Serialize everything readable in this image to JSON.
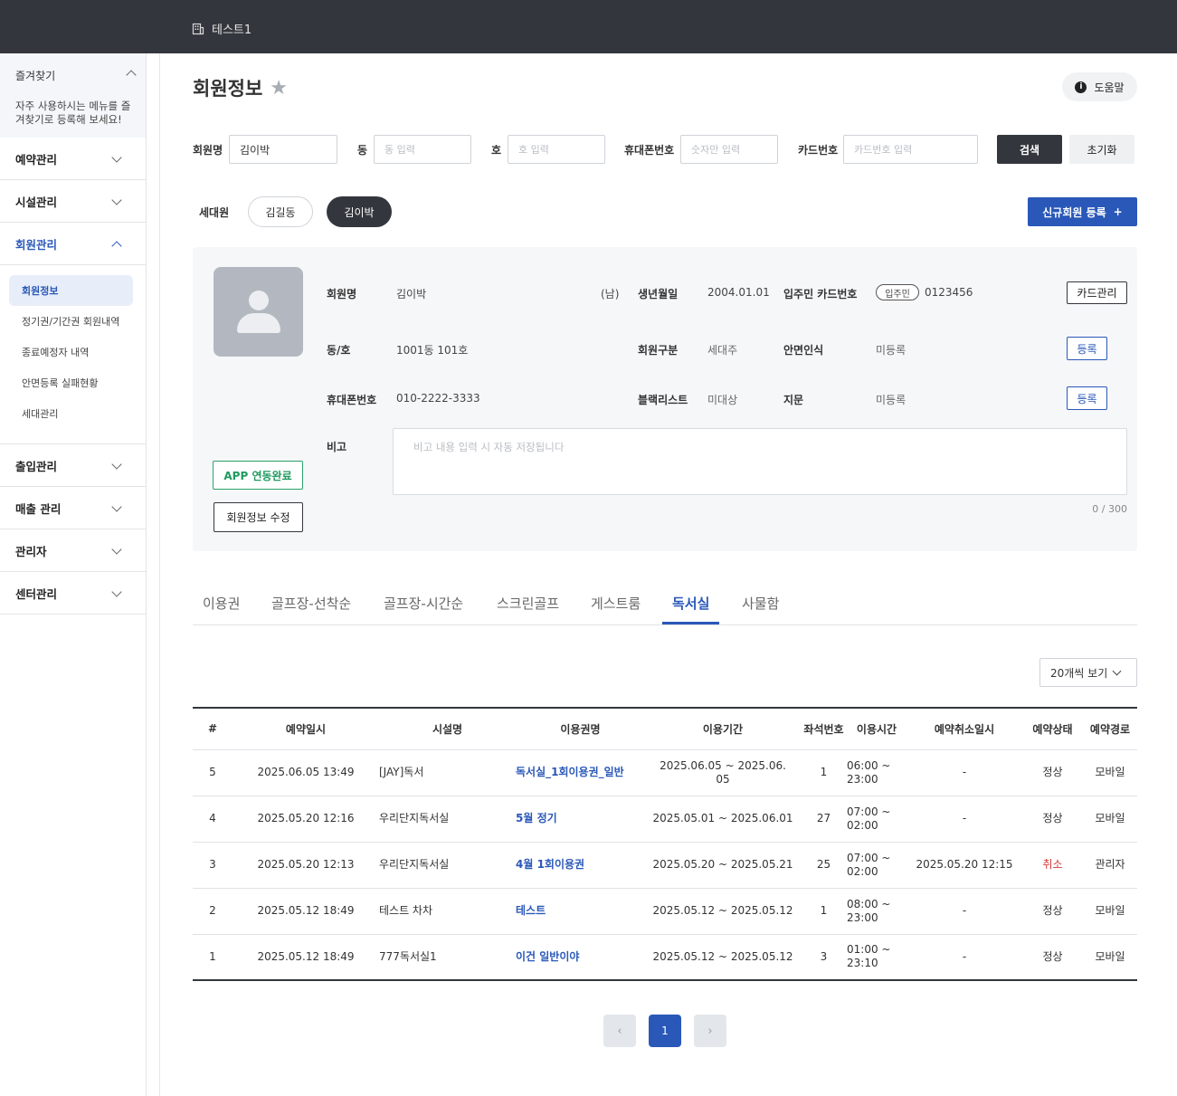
{
  "colors": {
    "topbar": "#33373d",
    "accent": "#2a58b8",
    "success": "#1f9a5f",
    "danger": "#d33a3a"
  },
  "topbar": {
    "org_name": "테스트1",
    "org_icon": "building-icon"
  },
  "sidebar": {
    "favorites": {
      "title": "즐겨찾기",
      "desc": "자주 사용하시는 메뉴를 즐겨찾기로 등록해 보세요!"
    },
    "menu": [
      {
        "label": "예약관리"
      },
      {
        "label": "시설관리"
      },
      {
        "label": "회원관리"
      },
      {
        "label": "출입관리"
      },
      {
        "label": "매출 관리"
      },
      {
        "label": "관리자"
      },
      {
        "label": "센터관리"
      }
    ],
    "submenu": [
      {
        "label": "회원정보"
      },
      {
        "label": "정기권/기간권 회원내역"
      },
      {
        "label": "종료예정자 내역"
      },
      {
        "label": "안면등록 실패현황"
      },
      {
        "label": "세대관리"
      }
    ]
  },
  "page": {
    "title": "회원정보",
    "help_label": "도움말"
  },
  "search": {
    "name_label": "회원명",
    "name_value": "김이박",
    "dong_label": "동",
    "dong_placeholder": "동 입력",
    "ho_label": "호",
    "ho_placeholder": "호 입력",
    "phone_label": "휴대폰번호",
    "phone_placeholder": "숫자만 입력",
    "card_label": "카드번호",
    "card_placeholder": "카드번호 입력",
    "search_button": "검색",
    "reset_button": "초기화"
  },
  "household": {
    "label": "세대원",
    "members": [
      "김길동",
      "김이박"
    ],
    "new_button": "신규회원 등록",
    "new_icon": "+"
  },
  "member": {
    "name_label": "회원명",
    "name": "김이박",
    "gender": "(남)",
    "birth_label": "생년월일",
    "birth": "2004.01.01",
    "card_label": "입주민 카드번호",
    "card_badge": "입주민",
    "card_no": "0123456",
    "card_button": "카드관리",
    "unit_label": "동/호",
    "unit": "1001동 101호",
    "type_label": "회원구분",
    "type": "세대주",
    "face_label": "안면인식",
    "face": "미등록",
    "face_button": "등록",
    "phone_label": "휴대폰번호",
    "phone": "010-2222-3333",
    "blacklist_label": "블랙리스트",
    "blacklist": "미대상",
    "finger_label": "지문",
    "finger": "미등록",
    "finger_button": "등록",
    "memo_label": "비고",
    "memo_placeholder": "비고 내용 입력 시 자동 저장됩니다",
    "memo_count": "0 / 300",
    "app_button": "APP 연동완료",
    "edit_button": "회원정보 수정"
  },
  "tabs": [
    "이용권",
    "골프장-선착순",
    "골프장-시간순",
    "스크린골프",
    "게스트룸",
    "독서실",
    "사물함"
  ],
  "page_size": "20개씩 보기",
  "table": {
    "headers": [
      "#",
      "예약일시",
      "시설명",
      "이용권명",
      "이용기간",
      "좌석번호",
      "이용시간",
      "예약취소일시",
      "예약상태",
      "예약경로"
    ],
    "rows": [
      [
        "5",
        "2025.06.05 13:49",
        "[JAY]독서",
        "독서실_1회이용권_일반",
        "2025.06.05 ~ 2025.06.05",
        "1",
        "06:00 ~ 23:00",
        "-",
        "정상",
        "모바일"
      ],
      [
        "4",
        "2025.05.20 12:16",
        "우리단지독서실",
        "5월 정기",
        "2025.05.01 ~ 2025.06.01",
        "27",
        "07:00 ~ 02:00",
        "-",
        "정상",
        "모바일"
      ],
      [
        "3",
        "2025.05.20 12:13",
        "우리단지독서실",
        "4월 1회이용권",
        "2025.05.20 ~ 2025.05.21",
        "25",
        "07:00 ~ 02:00",
        "2025.05.20 12:15",
        "취소",
        "관리자"
      ],
      [
        "2",
        "2025.05.12 18:49",
        "테스트 차차",
        "테스트",
        "2025.05.12 ~ 2025.05.12",
        "1",
        "08:00 ~ 23:00",
        "-",
        "정상",
        "모바일"
      ],
      [
        "1",
        "2025.05.12 18:49",
        "777독서실1",
        "이건 일반이야",
        "2025.05.12 ~ 2025.05.12",
        "3",
        "01:00 ~ 23:10",
        "-",
        "정상",
        "모바일"
      ]
    ]
  },
  "pagination": {
    "prev": "‹",
    "current": "1",
    "next": "›"
  }
}
